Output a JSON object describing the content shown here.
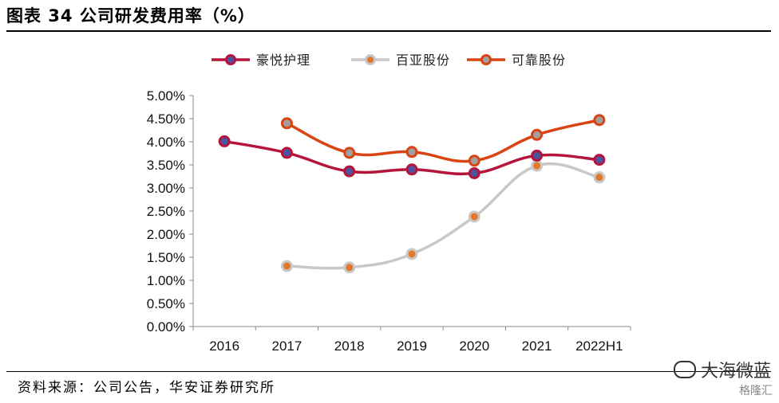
{
  "title": "图表 34 公司研发费用率（%）",
  "source": "资料来源：公司公告，华安证券研究所",
  "watermark": "大海微蓝",
  "watermark2": "格隆汇",
  "chart_data": {
    "type": "line",
    "categories": [
      "2016",
      "2017",
      "2018",
      "2019",
      "2020",
      "2021",
      "2022H1"
    ],
    "ylim": [
      0,
      0.05
    ],
    "yticks": [
      "0.00%",
      "0.50%",
      "1.00%",
      "1.50%",
      "2.00%",
      "2.50%",
      "3.00%",
      "3.50%",
      "4.00%",
      "4.50%",
      "5.00%"
    ],
    "legend_position": "top",
    "series": [
      {
        "name": "豪悦护理",
        "color": "#b5153a",
        "marker_color": "#4a55a2",
        "values": [
          0.0401,
          0.0376,
          0.0336,
          0.034,
          0.0332,
          0.037,
          0.0361
        ]
      },
      {
        "name": "百亚股份",
        "color": "#c8c8c8",
        "marker_color": "#e2782a",
        "values": [
          null,
          0.0131,
          0.0128,
          0.0157,
          0.0238,
          0.0348,
          0.0323
        ]
      },
      {
        "name": "可靠股份",
        "color": "#d84412",
        "marker_color": "#a0a0a0",
        "values": [
          null,
          0.044,
          0.0376,
          0.0378,
          0.0359,
          0.0415,
          0.0447
        ]
      }
    ]
  }
}
